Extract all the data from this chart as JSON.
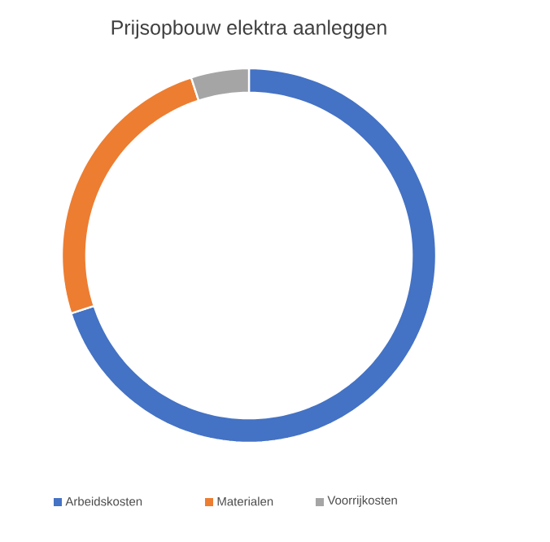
{
  "chart_data": {
    "type": "donut",
    "title": "Prijsopbouw elektra aanleggen",
    "categories": [
      "Arbeidskosten",
      "Materialen",
      "Voorrijkosten"
    ],
    "values": [
      70,
      25,
      5
    ],
    "colors": [
      "#4472c4",
      "#ed7d31",
      "#a5a5a5"
    ],
    "legend": "bottom"
  }
}
